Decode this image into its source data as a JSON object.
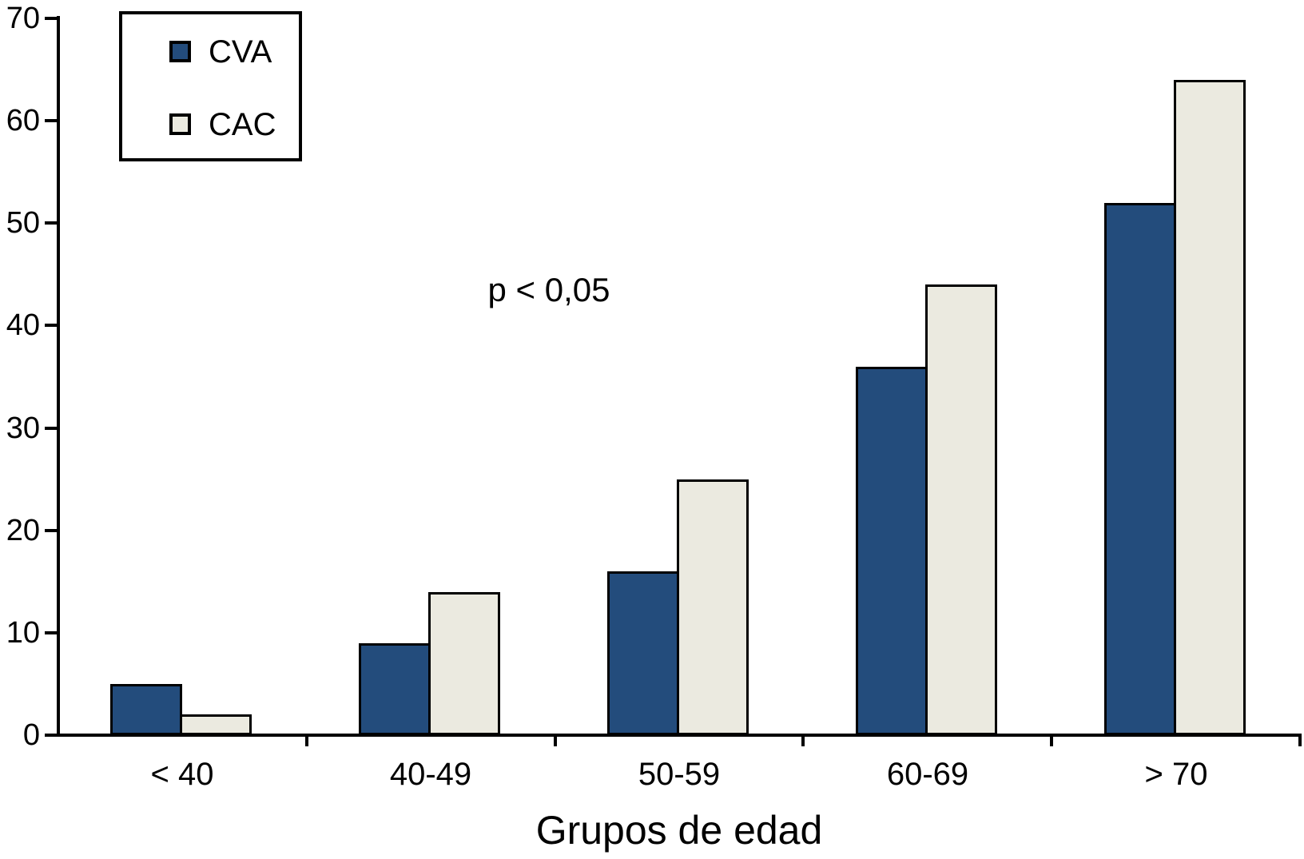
{
  "figure": {
    "background": "#ffffff",
    "annotation": "p < 0,05",
    "x_axis_title": "Grupos de edad"
  },
  "legend": {
    "position": "top-left",
    "items": [
      {
        "label": "CVA",
        "color": "#234c7c"
      },
      {
        "label": "CAC",
        "color": "#ebeae0"
      }
    ]
  },
  "chart_data": {
    "type": "bar",
    "title": "",
    "xlabel": "Grupos de edad",
    "ylabel": "",
    "categories": [
      "< 40",
      "40-49",
      "50-59",
      "60-69",
      "> 70"
    ],
    "series": [
      {
        "name": "CVA",
        "color": "#234c7c",
        "values": [
          5,
          9,
          16,
          36,
          52
        ]
      },
      {
        "name": "CAC",
        "color": "#ebeae0",
        "values": [
          2,
          14,
          25,
          44,
          64
        ]
      }
    ],
    "ylim": [
      0,
      70
    ],
    "yticks": [
      0,
      10,
      20,
      30,
      40,
      50,
      60,
      70
    ],
    "grid": false,
    "legend_position": "top-left",
    "annotations": [
      {
        "text": "p < 0,05"
      }
    ]
  }
}
